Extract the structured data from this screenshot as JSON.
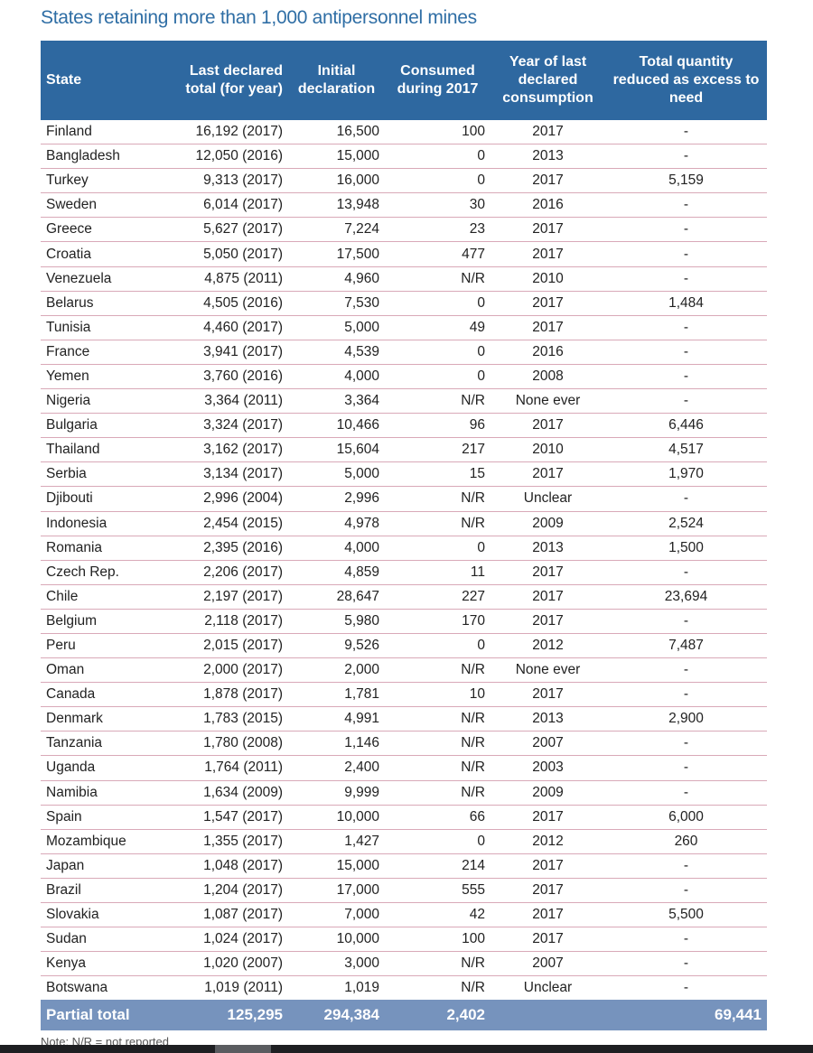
{
  "title": "States retaining more than 1,000 antipersonnel mines",
  "columns": [
    "State",
    "Last declared total (for year)",
    "Initial declaration",
    "Consumed during 2017",
    "Year of last declared consumption",
    "Total quantity reduced as excess to need"
  ],
  "rows": [
    [
      "Finland",
      "16,192 (2017)",
      "16,500",
      "100",
      "2017",
      "-"
    ],
    [
      "Bangladesh",
      "12,050 (2016)",
      "15,000",
      "0",
      "2013",
      "-"
    ],
    [
      "Turkey",
      "9,313 (2017)",
      "16,000",
      "0",
      "2017",
      "5,159"
    ],
    [
      "Sweden",
      "6,014 (2017)",
      "13,948",
      "30",
      "2016",
      "-"
    ],
    [
      "Greece",
      "5,627 (2017)",
      "7,224",
      "23",
      "2017",
      "-"
    ],
    [
      "Croatia",
      "5,050 (2017)",
      "17,500",
      "477",
      "2017",
      "-"
    ],
    [
      "Venezuela",
      "4,875 (2011)",
      "4,960",
      "N/R",
      "2010",
      "-"
    ],
    [
      "Belarus",
      "4,505 (2016)",
      "7,530",
      "0",
      "2017",
      "1,484"
    ],
    [
      "Tunisia",
      "4,460 (2017)",
      "5,000",
      "49",
      "2017",
      "-"
    ],
    [
      "France",
      "3,941 (2017)",
      "4,539",
      "0",
      "2016",
      "-"
    ],
    [
      "Yemen",
      "3,760 (2016)",
      "4,000",
      "0",
      "2008",
      "-"
    ],
    [
      "Nigeria",
      "3,364 (2011)",
      "3,364",
      "N/R",
      "None ever",
      "-"
    ],
    [
      "Bulgaria",
      "3,324 (2017)",
      "10,466",
      "96",
      "2017",
      "6,446"
    ],
    [
      "Thailand",
      "3,162 (2017)",
      "15,604",
      "217",
      "2010",
      "4,517"
    ],
    [
      "Serbia",
      "3,134 (2017)",
      "5,000",
      "15",
      "2017",
      "1,970"
    ],
    [
      "Djibouti",
      "2,996 (2004)",
      "2,996",
      "N/R",
      "Unclear",
      "-"
    ],
    [
      "Indonesia",
      "2,454 (2015)",
      "4,978",
      "N/R",
      "2009",
      "2,524"
    ],
    [
      "Romania",
      "2,395 (2016)",
      "4,000",
      "0",
      "2013",
      "1,500"
    ],
    [
      "Czech Rep.",
      "2,206 (2017)",
      "4,859",
      "11",
      "2017",
      "-"
    ],
    [
      "Chile",
      "2,197 (2017)",
      "28,647",
      "227",
      "2017",
      "23,694"
    ],
    [
      "Belgium",
      "2,118 (2017)",
      "5,980",
      "170",
      "2017",
      "-"
    ],
    [
      "Peru",
      "2,015 (2017)",
      "9,526",
      "0",
      "2012",
      "7,487"
    ],
    [
      "Oman",
      "2,000 (2017)",
      "2,000",
      "N/R",
      "None ever",
      "-"
    ],
    [
      "Canada",
      "1,878 (2017)",
      "1,781",
      "10",
      "2017",
      "-"
    ],
    [
      "Denmark",
      "1,783 (2015)",
      "4,991",
      "N/R",
      "2013",
      "2,900"
    ],
    [
      "Tanzania",
      "1,780 (2008)",
      "1,146",
      "N/R",
      "2007",
      "-"
    ],
    [
      "Uganda",
      "1,764 (2011)",
      "2,400",
      "N/R",
      "2003",
      "-"
    ],
    [
      "Namibia",
      "1,634 (2009)",
      "9,999",
      "N/R",
      "2009",
      "-"
    ],
    [
      "Spain",
      "1,547 (2017)",
      "10,000",
      "66",
      "2017",
      "6,000"
    ],
    [
      "Mozambique",
      "1,355 (2017)",
      "1,427",
      "0",
      "2012",
      "260"
    ],
    [
      "Japan",
      "1,048 (2017)",
      "15,000",
      "214",
      "2017",
      "-"
    ],
    [
      "Brazil",
      "1,204 (2017)",
      "17,000",
      "555",
      "2017",
      "-"
    ],
    [
      "Slovakia",
      "1,087 (2017)",
      "7,000",
      "42",
      "2017",
      "5,500"
    ],
    [
      "Sudan",
      "1,024 (2017)",
      "10,000",
      "100",
      "2017",
      "-"
    ],
    [
      "Kenya",
      "1,020 (2007)",
      "3,000",
      "N/R",
      "2007",
      "-"
    ],
    [
      "Botswana",
      "1,019 (2011)",
      "1,019",
      "N/R",
      "Unclear",
      "-"
    ]
  ],
  "total": [
    "Partial total",
    "125,295",
    "294,384",
    "2,402",
    "",
    "69,441"
  ],
  "note": "Note: N/R = not reported",
  "colors": {
    "header": "#2e68a0",
    "total": "#7693bd",
    "title": "#2f6ea5",
    "row_rule": "#d9a9b8"
  }
}
